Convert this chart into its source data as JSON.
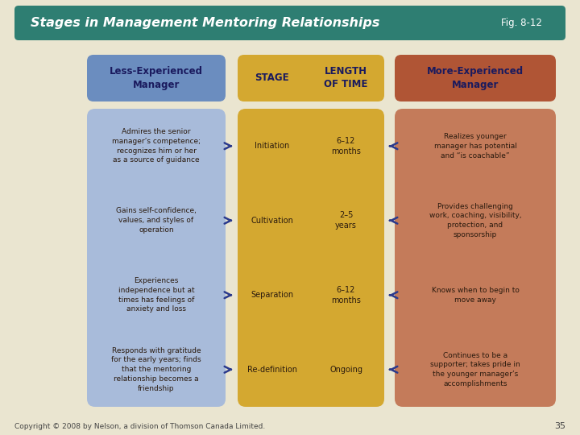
{
  "title": "Stages in Management Mentoring Relationships",
  "fig_label": "Fig. 8-12",
  "background_color": "#EAE5D0",
  "title_bg_color": "#2E7E72",
  "title_text_color": "#FFFFFF",
  "page_number": "35",
  "copyright": "Copyright © 2008 by Nelson, a division of Thomson Canada Limited.",
  "header_left": {
    "text": "Less-Experienced\nManager",
    "bg": "#6B8DBF",
    "text_color": "#1A1A5E"
  },
  "header_stage": {
    "text": "STAGE",
    "bg": "#D4A830",
    "text_color": "#1A1A5E"
  },
  "header_time": {
    "text": "LENGTH\nOF TIME",
    "bg": "#D4A830",
    "text_color": "#1A1A5E"
  },
  "header_right": {
    "text": "More-Experienced\nManager",
    "bg": "#B05535",
    "text_color": "#1A1A5E"
  },
  "body_left_bg": "#A8BBDA",
  "body_center_bg": "#D4A830",
  "body_right_bg": "#C47B5A",
  "arrow_color": "#2B3A8C",
  "rows": [
    {
      "left": "Admires the senior\nmanager’s competence;\nrecognizes him or her\nas a source of guidance",
      "stage": "Initiation",
      "time": "6–12\nmonths",
      "right": "Realizes younger\nmanager has potential\nand “is coachable”"
    },
    {
      "left": "Gains self-confidence,\nvalues, and styles of\noperation",
      "stage": "Cultivation",
      "time": "2–5\nyears",
      "right": "Provides challenging\nwork, coaching, visibility,\nprotection, and\nsponsorship"
    },
    {
      "left": "Experiences\nindependence but at\ntimes has feelings of\nanxiety and loss",
      "stage": "Separation",
      "time": "6–12\nmonths",
      "right": "Knows when to begin to\nmove away"
    },
    {
      "left": "Responds with gratitude\nfor the early years; finds\nthat the mentoring\nrelationship becomes a\nfriendship",
      "stage": "Re-definition",
      "time": "Ongoing",
      "right": "Continues to be a\nsupporter; takes pride in\nthe younger manager’s\naccomplishments"
    }
  ]
}
